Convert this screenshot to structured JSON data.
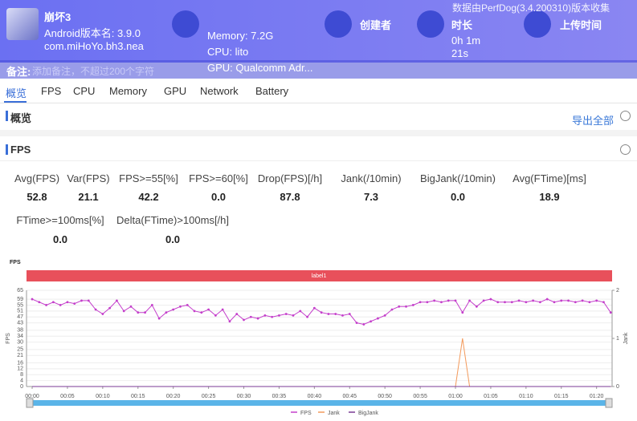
{
  "header": {
    "app_name": "崩坏3",
    "version": "Android版本名: 3.9.0",
    "package": "com.miHoYo.bh3.nea",
    "memory": "Memory: 7.2G",
    "cpu": "CPU: lito",
    "gpu": "GPU: Qualcomm Adr...",
    "creator_label": "创建者",
    "duration_label": "时长",
    "duration_line1": "0h 1m",
    "duration_line2": "21s",
    "upload_label": "上传时间",
    "collector_note": "数据由PerfDog(3.4.200310)版本收集"
  },
  "remark": {
    "label": "备注:",
    "placeholder": "添加备注，不超过200个字符"
  },
  "tabs": [
    "概览",
    "FPS",
    "CPU",
    "Memory",
    "GPU",
    "Network",
    "Battery"
  ],
  "overview": {
    "title": "概览",
    "export": "导出全部"
  },
  "fps_section": {
    "title": "FPS",
    "stats": [
      {
        "label": "Avg(FPS)",
        "value": "52.8"
      },
      {
        "label": "Var(FPS)",
        "value": "21.1"
      },
      {
        "label": "FPS>=55[%]",
        "value": "42.2"
      },
      {
        "label": "FPS>=60[%]",
        "value": "0.0"
      },
      {
        "label": "Drop(FPS)[/h]",
        "value": "87.8"
      },
      {
        "label": "Jank(/10min)",
        "value": "7.3"
      },
      {
        "label": "BigJank(/10min)",
        "value": "0.0"
      },
      {
        "label": "Avg(FTime)[ms]",
        "value": "18.9"
      },
      {
        "label": "FTime>=100ms[%]",
        "value": "0.0"
      },
      {
        "label": "Delta(FTime)>100ms[/h]",
        "value": "0.0"
      }
    ]
  },
  "chart_data": {
    "type": "line",
    "title": "FPS",
    "ylabel": "FPS",
    "y2label": "Jank",
    "band_label": "label1",
    "x": [
      0,
      1,
      2,
      3,
      4,
      5,
      6,
      7,
      8,
      9,
      10,
      11,
      12,
      13,
      14,
      15,
      16,
      17,
      18,
      19,
      20,
      21,
      22,
      23,
      24,
      25,
      26,
      27,
      28,
      29,
      30,
      31,
      32,
      33,
      34,
      35,
      36,
      37,
      38,
      39,
      40,
      41,
      42,
      43,
      44,
      45,
      46,
      47,
      48,
      49,
      50,
      51,
      52,
      53,
      54,
      55,
      56,
      57,
      58,
      59,
      60,
      61,
      62,
      63,
      64,
      65,
      66,
      67,
      68,
      69,
      70,
      71,
      72,
      73,
      74,
      75,
      76,
      77,
      78,
      79,
      80,
      81,
      82
    ],
    "series": [
      {
        "name": "FPS",
        "color": "#c43fcb",
        "values": [
          59,
          57,
          55,
          57,
          55,
          57,
          56,
          58,
          58,
          52,
          49,
          53,
          58,
          51,
          54,
          50,
          50,
          55,
          46,
          50,
          52,
          54,
          55,
          51,
          50,
          52,
          48,
          52,
          44,
          49,
          45,
          47,
          46,
          48,
          47,
          48,
          49,
          48,
          51,
          47,
          53,
          50,
          49,
          49,
          48,
          49,
          43,
          42,
          44,
          46,
          48,
          52,
          54,
          54,
          55,
          57,
          57,
          58,
          57,
          58,
          58,
          50,
          58,
          54,
          58,
          59,
          57,
          57,
          57,
          58,
          57,
          58,
          57,
          59,
          57,
          58,
          58,
          57,
          58,
          57,
          58,
          57,
          50
        ]
      },
      {
        "name": "Jank",
        "color": "#f39a5c",
        "axis": "y2",
        "values": [
          0,
          0,
          0,
          0,
          0,
          0,
          0,
          0,
          0,
          0,
          0,
          0,
          0,
          0,
          0,
          0,
          0,
          0,
          0,
          0,
          0,
          0,
          0,
          0,
          0,
          0,
          0,
          0,
          0,
          0,
          0,
          0,
          0,
          0,
          0,
          0,
          0,
          0,
          0,
          0,
          0,
          0,
          0,
          0,
          0,
          0,
          0,
          0,
          0,
          0,
          0,
          0,
          0,
          0,
          0,
          0,
          0,
          0,
          0,
          0,
          0,
          1,
          0,
          0,
          0,
          0,
          0,
          0,
          0,
          0,
          0,
          0,
          0,
          0,
          0,
          0,
          0,
          0,
          0,
          0,
          0,
          0,
          0
        ]
      },
      {
        "name": "BigJank",
        "color": "#7b3a96",
        "axis": "y2",
        "values": [
          0,
          0,
          0,
          0,
          0,
          0,
          0,
          0,
          0,
          0,
          0,
          0,
          0,
          0,
          0,
          0,
          0,
          0,
          0,
          0,
          0,
          0,
          0,
          0,
          0,
          0,
          0,
          0,
          0,
          0,
          0,
          0,
          0,
          0,
          0,
          0,
          0,
          0,
          0,
          0,
          0,
          0,
          0,
          0,
          0,
          0,
          0,
          0,
          0,
          0,
          0,
          0,
          0,
          0,
          0,
          0,
          0,
          0,
          0,
          0,
          0,
          0,
          0,
          0,
          0,
          0,
          0,
          0,
          0,
          0,
          0,
          0,
          0,
          0,
          0,
          0,
          0,
          0,
          0,
          0,
          0,
          0,
          0
        ]
      }
    ],
    "xlim": [
      -0.8,
      82.2
    ],
    "xticks": [
      {
        "value": 0,
        "label": "00:00"
      },
      {
        "value": 5,
        "label": "00:05"
      },
      {
        "value": 10,
        "label": "00:10"
      },
      {
        "value": 15,
        "label": "00:15"
      },
      {
        "value": 20,
        "label": "00:20"
      },
      {
        "value": 25,
        "label": "00:25"
      },
      {
        "value": 30,
        "label": "00:30"
      },
      {
        "value": 35,
        "label": "00:35"
      },
      {
        "value": 40,
        "label": "00:40"
      },
      {
        "value": 45,
        "label": "00:45"
      },
      {
        "value": 50,
        "label": "00:50"
      },
      {
        "value": 55,
        "label": "00:55"
      },
      {
        "value": 60,
        "label": "01:00"
      },
      {
        "value": 65,
        "label": "01:05"
      },
      {
        "value": 70,
        "label": "01:10"
      },
      {
        "value": 75,
        "label": "01:15"
      },
      {
        "value": 80,
        "label": "01:20"
      }
    ],
    "ylim": [
      0,
      65
    ],
    "yticks": [
      0,
      4,
      8,
      12,
      16,
      21,
      25,
      30,
      34,
      38,
      43,
      47,
      51,
      55,
      59,
      65
    ],
    "y2lim": [
      0,
      2
    ],
    "y2ticks": [
      0,
      1,
      2
    ],
    "grid": true,
    "legend": "bottom"
  }
}
